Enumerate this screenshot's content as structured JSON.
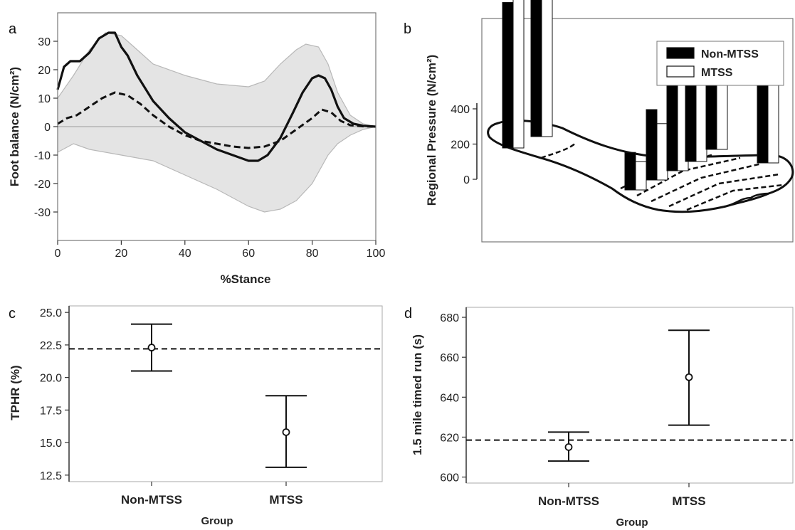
{
  "chart_data": [
    {
      "panel": "a",
      "type": "line",
      "xlabel": "%Stance",
      "ylabel": "Foot balance (N/cm²)",
      "xlim": [
        0,
        100
      ],
      "ylim": [
        -40,
        40
      ],
      "xticks": [
        0,
        20,
        40,
        60,
        80,
        100
      ],
      "yticks": [
        30,
        20,
        10,
        0,
        -10,
        -20,
        -30
      ],
      "colors": {
        "band": "#e4e4e4",
        "band_edge": "#b8b8b8",
        "line": "#111111",
        "zero": "#aaaaaa"
      },
      "series": [
        {
          "style": "solid",
          "x": [
            0,
            2,
            4,
            7,
            10,
            13,
            16,
            18,
            20,
            22,
            25,
            30,
            35,
            40,
            45,
            50,
            55,
            60,
            63,
            66,
            70,
            74,
            77,
            80,
            82,
            84,
            86,
            88,
            90,
            93,
            96,
            100
          ],
          "y": [
            13,
            21,
            23,
            23,
            26,
            31,
            33,
            33,
            28,
            25,
            18,
            9,
            3,
            -2,
            -5,
            -8,
            -10,
            -12,
            -12,
            -10,
            -4,
            5,
            12,
            17,
            18,
            17,
            13,
            7,
            3,
            1,
            0.3,
            0
          ]
        },
        {
          "style": "dashed",
          "x": [
            0,
            3,
            6,
            10,
            14,
            18,
            22,
            26,
            30,
            35,
            40,
            45,
            50,
            55,
            60,
            65,
            70,
            75,
            80,
            83,
            86,
            89,
            92,
            96,
            100
          ],
          "y": [
            1,
            3,
            4,
            7,
            10,
            12,
            11,
            8,
            4,
            0,
            -3,
            -5,
            -6,
            -7,
            -7.5,
            -7,
            -5,
            -1,
            3,
            6,
            5,
            2,
            0.5,
            0.1,
            0
          ]
        },
        {
          "style": "band-upper",
          "x": [
            0,
            5,
            10,
            15,
            20,
            25,
            30,
            40,
            50,
            60,
            65,
            70,
            75,
            78,
            82,
            85,
            88,
            92,
            96,
            100
          ],
          "y": [
            10,
            18,
            27,
            33,
            32,
            27,
            22,
            18,
            15,
            14,
            16,
            22,
            27,
            29,
            28,
            22,
            12,
            4,
            1,
            0
          ]
        },
        {
          "style": "band-lower",
          "x": [
            0,
            5,
            10,
            20,
            30,
            40,
            50,
            60,
            65,
            70,
            75,
            80,
            85,
            88,
            92,
            96,
            100
          ],
          "y": [
            -9,
            -6,
            -8,
            -10,
            -12,
            -17,
            -22,
            -28,
            -30,
            -29,
            -26,
            -20,
            -10,
            -6,
            -3,
            -1,
            0
          ]
        }
      ]
    },
    {
      "panel": "b",
      "type": "bar",
      "ylabel": "Regional Pressure (N/cm²)",
      "yticks": [
        400,
        200,
        0
      ],
      "legend": [
        {
          "name": "Non-MTSS",
          "color": "#000000"
        },
        {
          "name": "MTSS",
          "color": "#ffffff"
        }
      ],
      "legend_position": "top-right",
      "regions": [
        {
          "non_mtss": 310,
          "mtss": 330
        },
        {
          "non_mtss": 420,
          "mtss": 475
        },
        {
          "non_mtss": 80,
          "mtss": 60
        },
        {
          "non_mtss": 150,
          "mtss": 120
        },
        {
          "non_mtss": 200,
          "mtss": 240
        },
        {
          "non_mtss": 230,
          "mtss": 250
        },
        {
          "non_mtss": 170,
          "mtss": 230
        },
        {
          "non_mtss": 180,
          "mtss": 195
        }
      ]
    },
    {
      "panel": "c",
      "type": "scatter",
      "xlabel": "Group",
      "ylabel": "TPHR (%)",
      "categories": [
        "Non-MTSS",
        "MTSS"
      ],
      "ylim": [
        12,
        25.5
      ],
      "yticks": [
        "25.0",
        "22.5",
        "20.0",
        "17.5",
        "15.0",
        "12.5"
      ],
      "means": [
        22.3,
        15.8
      ],
      "lower": [
        20.5,
        13.1
      ],
      "upper": [
        24.1,
        18.6
      ],
      "reference_line": 22.2
    },
    {
      "panel": "d",
      "type": "scatter",
      "xlabel": "Group",
      "ylabel": "1.5 mile timed run (s)",
      "categories": [
        "Non-MTSS",
        "MTSS"
      ],
      "ylim": [
        597,
        685
      ],
      "yticks": [
        "680",
        "660",
        "640",
        "620",
        "600"
      ],
      "means": [
        615,
        650
      ],
      "lower": [
        608,
        626
      ],
      "upper": [
        622.5,
        673.5
      ],
      "reference_line": 618.5
    }
  ]
}
